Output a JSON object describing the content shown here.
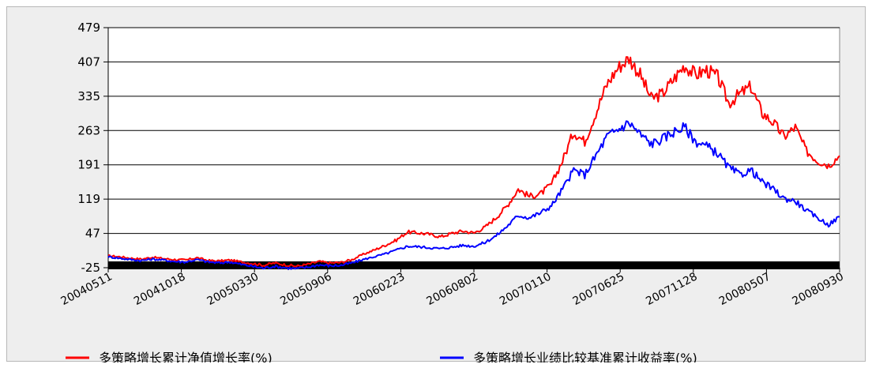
{
  "chart_data": {
    "type": "line",
    "x_tick_labels": [
      "20040511",
      "20041018",
      "20050330",
      "20050906",
      "20060223",
      "20060802",
      "20070110",
      "20070625",
      "20071128",
      "20080507",
      "20080930"
    ],
    "y_ticks": [
      -25,
      47,
      119,
      191,
      263,
      335,
      407,
      479
    ],
    "ylim": [
      -25,
      479
    ],
    "grid": "horizontal",
    "legend_position": "bottom",
    "colors": {
      "red_series": "#ff0000",
      "blue_series": "#0000ff",
      "baseline_bar": "#000000"
    },
    "series": [
      {
        "name": "多策略增长累计净值增长率(%)",
        "color": "#ff0000",
        "values": [
          0,
          -2,
          -5,
          -7,
          -3,
          -6,
          -8,
          -9,
          -4,
          -10,
          -11,
          -9,
          -13,
          -16,
          -20,
          -15,
          -19,
          -22,
          -18,
          -12,
          -15,
          -14,
          -8,
          3,
          12,
          22,
          33,
          50,
          48,
          45,
          40,
          47,
          52,
          48,
          60,
          80,
          105,
          140,
          125,
          130,
          150,
          200,
          260,
          240,
          300,
          360,
          395,
          415,
          380,
          330,
          340,
          370,
          400,
          380,
          390,
          375,
          320,
          340,
          355,
          300,
          280,
          250,
          270,
          220,
          200,
          190,
          210
        ]
      },
      {
        "name": "多策略增长业绩比较基准累计收益率(%)",
        "color": "#0000ff",
        "values": [
          -2,
          -5,
          -8,
          -10,
          -7,
          -9,
          -12,
          -13,
          -8,
          -13,
          -15,
          -13,
          -18,
          -22,
          -26,
          -22,
          -25,
          -27,
          -24,
          -19,
          -21,
          -20,
          -15,
          -8,
          -2,
          4,
          12,
          20,
          19,
          17,
          15,
          18,
          22,
          20,
          28,
          42,
          62,
          85,
          80,
          90,
          105,
          140,
          180,
          170,
          210,
          250,
          265,
          280,
          255,
          235,
          245,
          260,
          270,
          240,
          230,
          215,
          185,
          170,
          180,
          155,
          140,
          120,
          115,
          95,
          80,
          65,
          82
        ]
      }
    ]
  }
}
